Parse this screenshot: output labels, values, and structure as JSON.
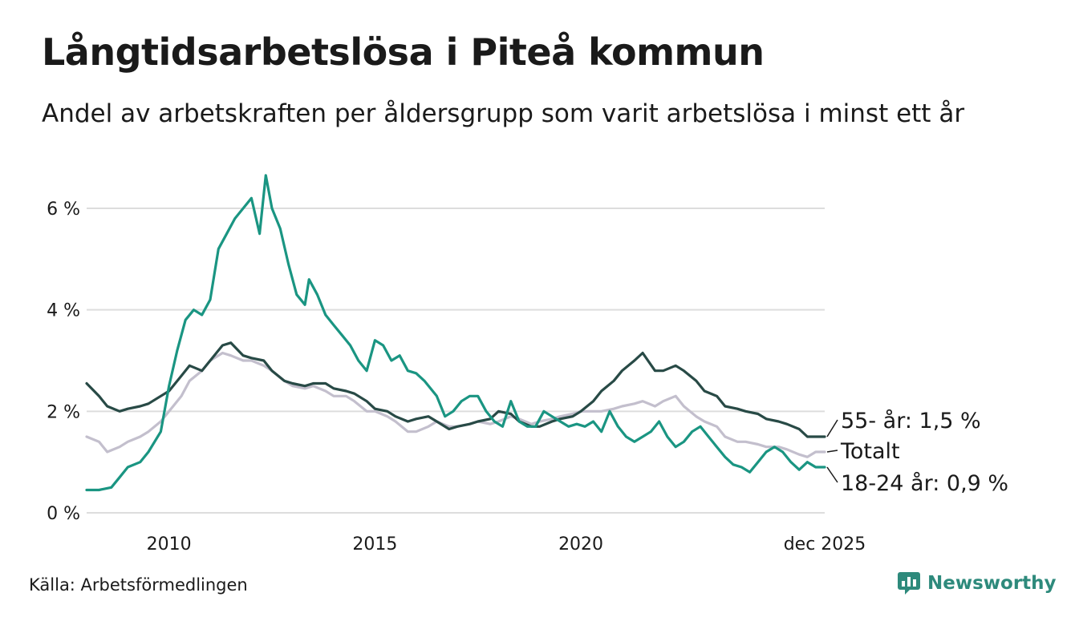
{
  "header": {
    "title": "Långtidsarbetslösa i Piteå kommun",
    "subtitle": "Andel av arbetskraften per åldersgrupp som varit arbetslösa i minst ett år"
  },
  "footer": {
    "source": "Källa: Arbetsförmedlingen",
    "brand": "Newsworthy"
  },
  "colors": {
    "youth": "#1a9582",
    "older": "#284a46",
    "total": "#c3bfcd",
    "grid": "#dddddd"
  },
  "chart_data": {
    "type": "line",
    "title": "Långtidsarbetslösa i Piteå kommun",
    "xlabel": "",
    "ylabel": "",
    "xlim": [
      2008.0,
      2025.92
    ],
    "ylim": [
      0,
      6.6
    ],
    "y_ticks": [
      {
        "value": 0,
        "label": "0 %"
      },
      {
        "value": 2,
        "label": "2 %"
      },
      {
        "value": 4,
        "label": "4 %"
      },
      {
        "value": 6,
        "label": "6 %"
      }
    ],
    "x_ticks": [
      {
        "value": 2010,
        "label": "2010"
      },
      {
        "value": 2015,
        "label": "2015"
      },
      {
        "value": 2020,
        "label": "2020"
      },
      {
        "value": 2025.92,
        "label": "dec 2025"
      }
    ],
    "series": [
      {
        "name": "Totalt",
        "end_label": "Totalt",
        "color": "#c3bfcd",
        "points": [
          [
            2008.0,
            1.5
          ],
          [
            2008.3,
            1.4
          ],
          [
            2008.5,
            1.2
          ],
          [
            2008.8,
            1.3
          ],
          [
            2009.0,
            1.4
          ],
          [
            2009.3,
            1.5
          ],
          [
            2009.5,
            1.6
          ],
          [
            2009.8,
            1.8
          ],
          [
            2010.0,
            2.0
          ],
          [
            2010.3,
            2.3
          ],
          [
            2010.5,
            2.6
          ],
          [
            2010.8,
            2.8
          ],
          [
            2011.0,
            3.0
          ],
          [
            2011.3,
            3.15
          ],
          [
            2011.5,
            3.1
          ],
          [
            2011.8,
            3.0
          ],
          [
            2012.0,
            3.0
          ],
          [
            2012.3,
            2.9
          ],
          [
            2012.5,
            2.8
          ],
          [
            2012.8,
            2.6
          ],
          [
            2013.0,
            2.5
          ],
          [
            2013.3,
            2.45
          ],
          [
            2013.5,
            2.5
          ],
          [
            2013.8,
            2.4
          ],
          [
            2014.0,
            2.3
          ],
          [
            2014.3,
            2.3
          ],
          [
            2014.5,
            2.2
          ],
          [
            2014.8,
            2.0
          ],
          [
            2015.0,
            2.0
          ],
          [
            2015.3,
            1.9
          ],
          [
            2015.5,
            1.8
          ],
          [
            2015.8,
            1.6
          ],
          [
            2016.0,
            1.6
          ],
          [
            2016.3,
            1.7
          ],
          [
            2016.5,
            1.8
          ],
          [
            2016.8,
            1.7
          ],
          [
            2017.0,
            1.7
          ],
          [
            2017.3,
            1.75
          ],
          [
            2017.5,
            1.8
          ],
          [
            2017.8,
            1.75
          ],
          [
            2018.0,
            1.8
          ],
          [
            2018.3,
            1.9
          ],
          [
            2018.5,
            1.85
          ],
          [
            2018.8,
            1.75
          ],
          [
            2019.0,
            1.8
          ],
          [
            2019.3,
            1.85
          ],
          [
            2019.5,
            1.9
          ],
          [
            2019.8,
            1.95
          ],
          [
            2020.0,
            2.0
          ],
          [
            2020.3,
            2.0
          ],
          [
            2020.5,
            2.0
          ],
          [
            2020.8,
            2.05
          ],
          [
            2021.0,
            2.1
          ],
          [
            2021.3,
            2.15
          ],
          [
            2021.5,
            2.2
          ],
          [
            2021.8,
            2.1
          ],
          [
            2022.0,
            2.2
          ],
          [
            2022.3,
            2.3
          ],
          [
            2022.5,
            2.1
          ],
          [
            2022.8,
            1.9
          ],
          [
            2023.0,
            1.8
          ],
          [
            2023.3,
            1.7
          ],
          [
            2023.5,
            1.5
          ],
          [
            2023.8,
            1.4
          ],
          [
            2024.0,
            1.4
          ],
          [
            2024.3,
            1.35
          ],
          [
            2024.5,
            1.3
          ],
          [
            2024.8,
            1.3
          ],
          [
            2025.0,
            1.25
          ],
          [
            2025.3,
            1.15
          ],
          [
            2025.5,
            1.1
          ],
          [
            2025.7,
            1.2
          ],
          [
            2025.92,
            1.2
          ]
        ]
      },
      {
        "name": "55- år",
        "end_label": "55- år: 1,5 %",
        "color": "#284a46",
        "points": [
          [
            2008.0,
            2.55
          ],
          [
            2008.3,
            2.3
          ],
          [
            2008.5,
            2.1
          ],
          [
            2008.8,
            2.0
          ],
          [
            2009.0,
            2.05
          ],
          [
            2009.3,
            2.1
          ],
          [
            2009.5,
            2.15
          ],
          [
            2009.8,
            2.3
          ],
          [
            2010.0,
            2.4
          ],
          [
            2010.3,
            2.7
          ],
          [
            2010.5,
            2.9
          ],
          [
            2010.8,
            2.8
          ],
          [
            2011.0,
            3.0
          ],
          [
            2011.3,
            3.3
          ],
          [
            2011.5,
            3.35
          ],
          [
            2011.8,
            3.1
          ],
          [
            2012.0,
            3.05
          ],
          [
            2012.3,
            3.0
          ],
          [
            2012.5,
            2.8
          ],
          [
            2012.8,
            2.6
          ],
          [
            2013.0,
            2.55
          ],
          [
            2013.3,
            2.5
          ],
          [
            2013.5,
            2.55
          ],
          [
            2013.8,
            2.55
          ],
          [
            2014.0,
            2.45
          ],
          [
            2014.3,
            2.4
          ],
          [
            2014.5,
            2.35
          ],
          [
            2014.8,
            2.2
          ],
          [
            2015.0,
            2.05
          ],
          [
            2015.3,
            2.0
          ],
          [
            2015.5,
            1.9
          ],
          [
            2015.8,
            1.8
          ],
          [
            2016.0,
            1.85
          ],
          [
            2016.3,
            1.9
          ],
          [
            2016.5,
            1.8
          ],
          [
            2016.8,
            1.65
          ],
          [
            2017.0,
            1.7
          ],
          [
            2017.3,
            1.75
          ],
          [
            2017.5,
            1.8
          ],
          [
            2017.8,
            1.85
          ],
          [
            2018.0,
            2.0
          ],
          [
            2018.3,
            1.95
          ],
          [
            2018.5,
            1.8
          ],
          [
            2018.8,
            1.7
          ],
          [
            2019.0,
            1.7
          ],
          [
            2019.3,
            1.8
          ],
          [
            2019.5,
            1.85
          ],
          [
            2019.8,
            1.9
          ],
          [
            2020.0,
            2.0
          ],
          [
            2020.3,
            2.2
          ],
          [
            2020.5,
            2.4
          ],
          [
            2020.8,
            2.6
          ],
          [
            2021.0,
            2.8
          ],
          [
            2021.3,
            3.0
          ],
          [
            2021.5,
            3.15
          ],
          [
            2021.8,
            2.8
          ],
          [
            2022.0,
            2.8
          ],
          [
            2022.3,
            2.9
          ],
          [
            2022.5,
            2.8
          ],
          [
            2022.8,
            2.6
          ],
          [
            2023.0,
            2.4
          ],
          [
            2023.3,
            2.3
          ],
          [
            2023.5,
            2.1
          ],
          [
            2023.8,
            2.05
          ],
          [
            2024.0,
            2.0
          ],
          [
            2024.3,
            1.95
          ],
          [
            2024.5,
            1.85
          ],
          [
            2024.8,
            1.8
          ],
          [
            2025.0,
            1.75
          ],
          [
            2025.3,
            1.65
          ],
          [
            2025.5,
            1.5
          ],
          [
            2025.7,
            1.5
          ],
          [
            2025.92,
            1.5
          ]
        ]
      },
      {
        "name": "18-24 år",
        "end_label": "18-24 år: 0,9 %",
        "color": "#1a9582",
        "points": [
          [
            2008.0,
            0.45
          ],
          [
            2008.3,
            0.45
          ],
          [
            2008.6,
            0.5
          ],
          [
            2008.8,
            0.7
          ],
          [
            2009.0,
            0.9
          ],
          [
            2009.3,
            1.0
          ],
          [
            2009.5,
            1.2
          ],
          [
            2009.8,
            1.6
          ],
          [
            2010.0,
            2.5
          ],
          [
            2010.2,
            3.2
          ],
          [
            2010.4,
            3.8
          ],
          [
            2010.6,
            4.0
          ],
          [
            2010.8,
            3.9
          ],
          [
            2011.0,
            4.2
          ],
          [
            2011.2,
            5.2
          ],
          [
            2011.4,
            5.5
          ],
          [
            2011.6,
            5.8
          ],
          [
            2011.8,
            6.0
          ],
          [
            2012.0,
            6.2
          ],
          [
            2012.2,
            5.5
          ],
          [
            2012.35,
            6.65
          ],
          [
            2012.5,
            6.0
          ],
          [
            2012.7,
            5.6
          ],
          [
            2012.9,
            4.9
          ],
          [
            2013.1,
            4.3
          ],
          [
            2013.3,
            4.1
          ],
          [
            2013.4,
            4.6
          ],
          [
            2013.6,
            4.3
          ],
          [
            2013.8,
            3.9
          ],
          [
            2014.0,
            3.7
          ],
          [
            2014.2,
            3.5
          ],
          [
            2014.4,
            3.3
          ],
          [
            2014.6,
            3.0
          ],
          [
            2014.8,
            2.8
          ],
          [
            2015.0,
            3.4
          ],
          [
            2015.2,
            3.3
          ],
          [
            2015.4,
            3.0
          ],
          [
            2015.6,
            3.1
          ],
          [
            2015.8,
            2.8
          ],
          [
            2016.0,
            2.75
          ],
          [
            2016.2,
            2.6
          ],
          [
            2016.5,
            2.3
          ],
          [
            2016.7,
            1.9
          ],
          [
            2016.9,
            2.0
          ],
          [
            2017.1,
            2.2
          ],
          [
            2017.3,
            2.3
          ],
          [
            2017.5,
            2.3
          ],
          [
            2017.7,
            2.0
          ],
          [
            2017.9,
            1.8
          ],
          [
            2018.1,
            1.7
          ],
          [
            2018.3,
            2.2
          ],
          [
            2018.5,
            1.8
          ],
          [
            2018.7,
            1.7
          ],
          [
            2018.9,
            1.7
          ],
          [
            2019.1,
            2.0
          ],
          [
            2019.3,
            1.9
          ],
          [
            2019.5,
            1.8
          ],
          [
            2019.7,
            1.7
          ],
          [
            2019.9,
            1.75
          ],
          [
            2020.1,
            1.7
          ],
          [
            2020.3,
            1.8
          ],
          [
            2020.5,
            1.6
          ],
          [
            2020.7,
            2.0
          ],
          [
            2020.9,
            1.7
          ],
          [
            2021.1,
            1.5
          ],
          [
            2021.3,
            1.4
          ],
          [
            2021.5,
            1.5
          ],
          [
            2021.7,
            1.6
          ],
          [
            2021.9,
            1.8
          ],
          [
            2022.1,
            1.5
          ],
          [
            2022.3,
            1.3
          ],
          [
            2022.5,
            1.4
          ],
          [
            2022.7,
            1.6
          ],
          [
            2022.9,
            1.7
          ],
          [
            2023.1,
            1.5
          ],
          [
            2023.3,
            1.3
          ],
          [
            2023.5,
            1.1
          ],
          [
            2023.7,
            0.95
          ],
          [
            2023.9,
            0.9
          ],
          [
            2024.1,
            0.8
          ],
          [
            2024.3,
            1.0
          ],
          [
            2024.5,
            1.2
          ],
          [
            2024.7,
            1.3
          ],
          [
            2024.9,
            1.2
          ],
          [
            2025.1,
            1.0
          ],
          [
            2025.3,
            0.85
          ],
          [
            2025.5,
            1.0
          ],
          [
            2025.7,
            0.9
          ],
          [
            2025.92,
            0.9
          ]
        ]
      }
    ]
  }
}
